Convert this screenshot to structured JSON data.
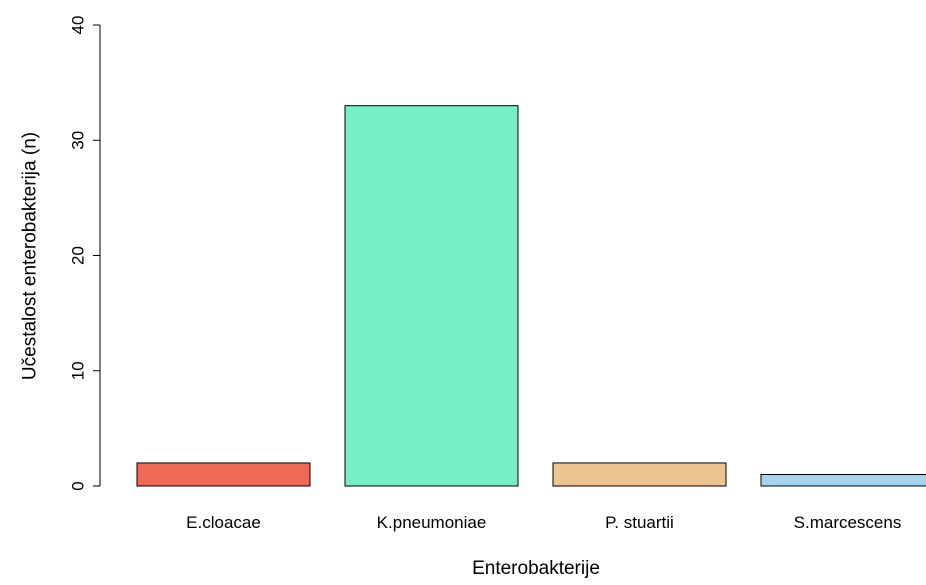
{
  "chart_data": {
    "type": "bar",
    "title": "",
    "xlabel": "Enterobakterije",
    "ylabel": "Učestalost enterobakterija (n)",
    "categories": [
      "E.cloacae",
      "K.pneumoniae",
      "P. stuartii",
      "S.marcescens"
    ],
    "values": [
      2,
      33,
      2,
      1
    ],
    "colors": [
      "#EE6A55",
      "#76EEC6",
      "#EEC591",
      "#A4D3EE"
    ],
    "ylim": [
      0,
      40
    ],
    "yticks": [
      0,
      10,
      20,
      30,
      40
    ],
    "grid": false,
    "legend": "none"
  }
}
